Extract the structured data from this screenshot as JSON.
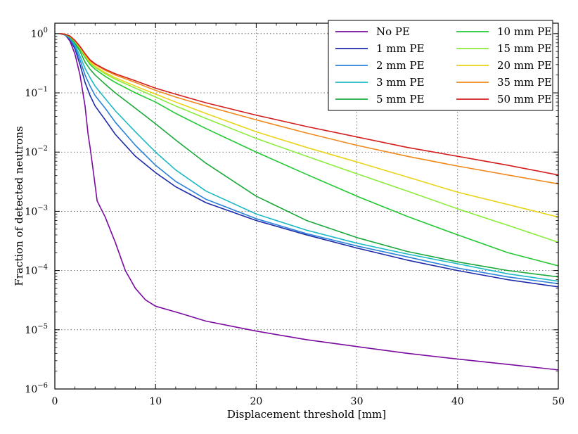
{
  "chart_data": {
    "type": "line",
    "title": "",
    "xlabel": "Displacement threshold [mm]",
    "ylabel": "Fraction of detected neutrons",
    "xlim": [
      0,
      50
    ],
    "ylim": [
      1e-06,
      1.5
    ],
    "yscale": "log",
    "grid": true,
    "legend_position": "top-right",
    "x_ticks": [
      {
        "value": 0,
        "label": "0"
      },
      {
        "value": 10,
        "label": "10"
      },
      {
        "value": 20,
        "label": "20"
      },
      {
        "value": 30,
        "label": "30"
      },
      {
        "value": 40,
        "label": "40"
      },
      {
        "value": 50,
        "label": "50"
      }
    ],
    "y_ticks": [
      {
        "value": 1,
        "base": "10",
        "exp": "0"
      },
      {
        "value": 0.1,
        "base": "10",
        "exp": "−1"
      },
      {
        "value": 0.01,
        "base": "10",
        "exp": "−2"
      },
      {
        "value": 0.001,
        "base": "10",
        "exp": "−3"
      },
      {
        "value": 0.0001,
        "base": "10",
        "exp": "−4"
      },
      {
        "value": 1e-05,
        "base": "10",
        "exp": "−5"
      },
      {
        "value": 1e-06,
        "base": "10",
        "exp": "−6"
      }
    ],
    "series": [
      {
        "name": "No PE",
        "color": "#7a0aa0",
        "x": [
          0.5,
          1,
          1.5,
          2,
          2.5,
          3,
          3.3,
          3.5,
          3.8,
          4.2,
          5,
          6,
          7,
          8,
          9,
          10,
          12,
          15,
          20,
          25,
          30,
          35,
          40,
          45,
          50
        ],
        "y": [
          1,
          0.97,
          0.75,
          0.45,
          0.2,
          0.06,
          0.02,
          0.012,
          0.005,
          0.0015,
          0.0008,
          0.0003,
          0.0001,
          5e-05,
          3.2e-05,
          2.5e-05,
          2e-05,
          1.4e-05,
          9.5e-06,
          6.8e-06,
          5.2e-06,
          4e-06,
          3.2e-06,
          2.6e-06,
          2.1e-06
        ]
      },
      {
        "name": "1 mm PE",
        "color": "#1c2aa8",
        "x": [
          0.5,
          1,
          1.5,
          2,
          2.5,
          3,
          3.5,
          4,
          5,
          6,
          8,
          10,
          12,
          15,
          20,
          25,
          30,
          35,
          40,
          45,
          50
        ],
        "y": [
          1,
          0.95,
          0.8,
          0.55,
          0.3,
          0.15,
          0.09,
          0.06,
          0.035,
          0.02,
          0.0085,
          0.0045,
          0.0026,
          0.0014,
          0.0007,
          0.0004,
          0.00024,
          0.00015,
          0.0001,
          7e-05,
          5.3e-05
        ]
      },
      {
        "name": "2 mm PE",
        "color": "#2a82d8",
        "x": [
          0.5,
          1,
          1.5,
          2,
          2.5,
          3,
          3.5,
          4,
          5,
          6,
          8,
          10,
          12,
          15,
          20,
          25,
          30,
          35,
          40,
          45,
          50
        ],
        "y": [
          1,
          0.96,
          0.82,
          0.6,
          0.36,
          0.2,
          0.13,
          0.09,
          0.055,
          0.032,
          0.013,
          0.006,
          0.0032,
          0.0016,
          0.00075,
          0.00042,
          0.00026,
          0.00017,
          0.00011,
          7.8e-05,
          6e-05
        ]
      },
      {
        "name": "3 mm PE",
        "color": "#1cb8c4",
        "x": [
          0.5,
          1,
          1.5,
          2,
          2.5,
          3,
          3.5,
          4,
          5,
          6,
          8,
          10,
          12,
          15,
          20,
          25,
          30,
          35,
          40,
          45,
          50
        ],
        "y": [
          1,
          0.97,
          0.85,
          0.65,
          0.42,
          0.26,
          0.18,
          0.13,
          0.08,
          0.05,
          0.022,
          0.01,
          0.005,
          0.0022,
          0.0009,
          0.00048,
          0.00029,
          0.00019,
          0.00013,
          8.8e-05,
          6.6e-05
        ]
      },
      {
        "name": "5 mm PE",
        "color": "#1aa83a",
        "x": [
          0.5,
          1,
          1.5,
          2,
          2.5,
          3,
          3.5,
          4,
          5,
          6,
          8,
          10,
          12,
          15,
          20,
          25,
          30,
          35,
          40,
          45,
          50
        ],
        "y": [
          1,
          0.97,
          0.87,
          0.7,
          0.5,
          0.33,
          0.25,
          0.2,
          0.14,
          0.1,
          0.055,
          0.03,
          0.016,
          0.0065,
          0.0018,
          0.0007,
          0.00036,
          0.00021,
          0.00014,
          0.0001,
          7.8e-05
        ]
      },
      {
        "name": "10 mm PE",
        "color": "#22c832",
        "x": [
          0.5,
          1,
          1.5,
          2,
          2.5,
          3,
          3.5,
          4,
          5,
          6,
          8,
          10,
          12,
          15,
          20,
          25,
          30,
          35,
          40,
          45,
          50
        ],
        "y": [
          1,
          0.98,
          0.88,
          0.72,
          0.55,
          0.4,
          0.3,
          0.25,
          0.19,
          0.15,
          0.1,
          0.07,
          0.045,
          0.025,
          0.01,
          0.0042,
          0.0018,
          0.00082,
          0.0004,
          0.0002,
          0.00012
        ]
      },
      {
        "name": "15 mm PE",
        "color": "#8cec3c",
        "x": [
          0.5,
          1,
          1.5,
          2,
          2.5,
          3,
          3.5,
          4,
          5,
          6,
          8,
          10,
          12,
          15,
          20,
          25,
          30,
          35,
          40,
          45,
          50
        ],
        "y": [
          1,
          0.98,
          0.89,
          0.74,
          0.57,
          0.42,
          0.32,
          0.27,
          0.21,
          0.17,
          0.12,
          0.085,
          0.06,
          0.037,
          0.017,
          0.0085,
          0.0043,
          0.0022,
          0.0011,
          0.00058,
          0.0003
        ]
      },
      {
        "name": "20 mm PE",
        "color": "#e8d41a",
        "x": [
          0.5,
          1,
          1.5,
          2,
          2.5,
          3,
          3.5,
          4,
          5,
          6,
          8,
          10,
          12,
          15,
          20,
          25,
          30,
          35,
          40,
          45,
          50
        ],
        "y": [
          1,
          0.98,
          0.9,
          0.75,
          0.58,
          0.43,
          0.33,
          0.28,
          0.22,
          0.18,
          0.13,
          0.095,
          0.07,
          0.045,
          0.022,
          0.012,
          0.0068,
          0.0038,
          0.0021,
          0.0013,
          0.0008
        ]
      },
      {
        "name": "35 mm PE",
        "color": "#f08a1c",
        "x": [
          0.5,
          1,
          1.5,
          2,
          2.5,
          3,
          3.5,
          4,
          5,
          6,
          8,
          10,
          12,
          15,
          20,
          25,
          30,
          35,
          40,
          45,
          50
        ],
        "y": [
          1,
          0.98,
          0.91,
          0.76,
          0.6,
          0.45,
          0.35,
          0.3,
          0.24,
          0.2,
          0.15,
          0.11,
          0.085,
          0.06,
          0.035,
          0.021,
          0.013,
          0.0085,
          0.0058,
          0.0041,
          0.0029
        ]
      },
      {
        "name": "50 mm PE",
        "color": "#d41c1c",
        "x": [
          0.5,
          1,
          1.5,
          2,
          2.5,
          3,
          3.5,
          4,
          5,
          6,
          8,
          10,
          12,
          15,
          20,
          25,
          30,
          35,
          40,
          45,
          50
        ],
        "y": [
          1,
          0.98,
          0.91,
          0.77,
          0.61,
          0.46,
          0.36,
          0.31,
          0.25,
          0.21,
          0.16,
          0.12,
          0.095,
          0.068,
          0.042,
          0.027,
          0.018,
          0.012,
          0.0085,
          0.006,
          0.0041
        ]
      }
    ]
  }
}
